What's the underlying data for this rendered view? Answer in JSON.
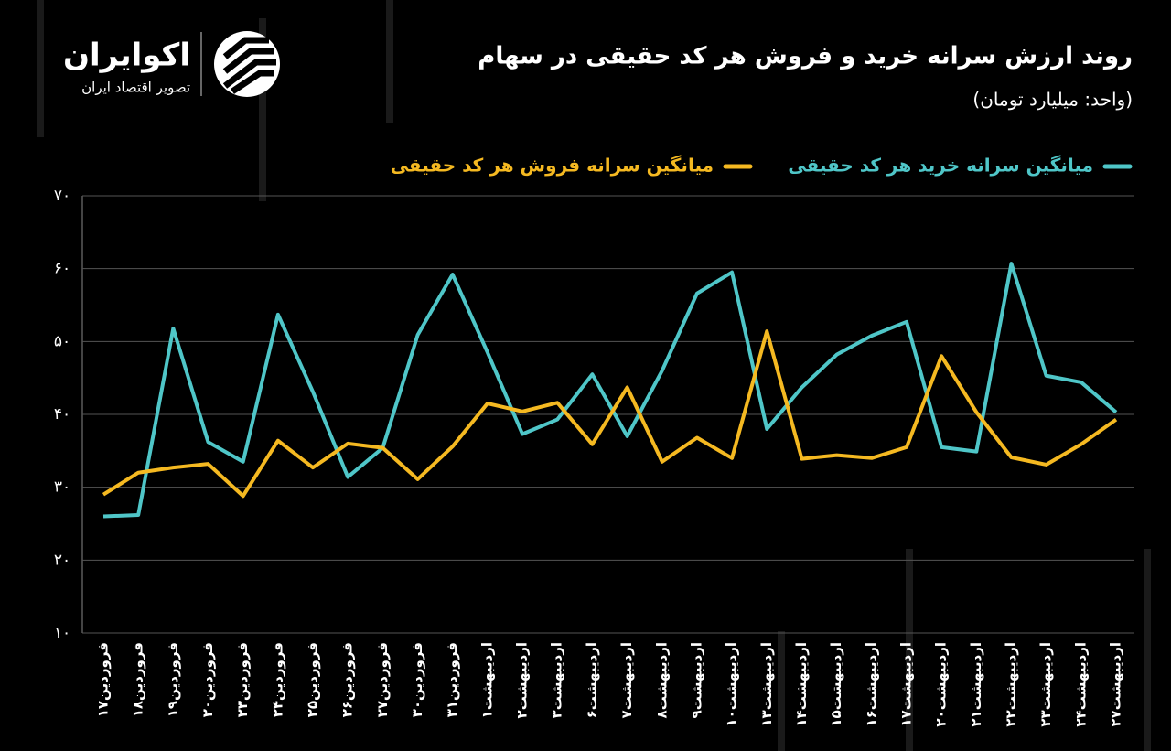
{
  "brand": {
    "name": "اکوایران",
    "tagline": "تصویر اقتصاد ایران"
  },
  "chart_data": {
    "type": "line",
    "title": "روند ارزش سرانه خرید و فروش هر کد حقیقی در سهام",
    "subtitle": "(واحد: میلیارد تومان)",
    "categories": [
      "فروردین۱۷",
      "فروردین۱۸",
      "فروردین۱۹",
      "فروردین۲۰",
      "فروردین۲۳",
      "فروردین۲۴",
      "فروردین۲۵",
      "فروردین۲۶",
      "فروردین۲۷",
      "فروردین۳۰",
      "فروردین۳۱",
      "اردیبهشت۱",
      "اردیبهشت۲",
      "اردیبهشت۳",
      "اردیبهشت۶",
      "اردیبهشت۷",
      "اردیبهشت۸",
      "اردیبهشت۹",
      "اردیبهشت۱۰",
      "اردیبهشت۱۳",
      "اردیبهشت۱۴",
      "اردیبهشت۱۵",
      "اردیبهشت۱۶",
      "اردیبهشت۱۷",
      "اردیبهشت۲۰",
      "اردیبهشت۲۱",
      "اردیبهشت۲۲",
      "اردیبهشت۲۳",
      "اردیبهشت۲۴",
      "اردیبهشت۲۷"
    ],
    "series": [
      {
        "name": "میانگین سرانه خرید هر کد حقیقی",
        "color": "#4fc6c8",
        "values": [
          26.0,
          26.2,
          51.8,
          36.2,
          33.5,
          53.7,
          43.1,
          31.4,
          35.4,
          50.9,
          59.2,
          48.5,
          37.3,
          39.3,
          45.5,
          37.0,
          46.0,
          56.6,
          59.5,
          38.0,
          43.7,
          48.2,
          50.8,
          52.7,
          35.5,
          34.9,
          60.7,
          45.3,
          44.4,
          40.3
        ]
      },
      {
        "name": "میانگین سرانه فروش هر کد حقیقی",
        "color": "#f5b921",
        "values": [
          29.0,
          32.0,
          32.7,
          33.2,
          28.8,
          36.4,
          32.7,
          36.0,
          35.4,
          31.1,
          35.6,
          41.5,
          40.4,
          41.6,
          35.9,
          43.7,
          33.5,
          36.8,
          34.0,
          51.4,
          33.9,
          34.4,
          34.0,
          35.5,
          48.0,
          40.3,
          34.1,
          33.1,
          35.9,
          39.3
        ]
      }
    ],
    "ylim": [
      10,
      70
    ],
    "yticks": [
      {
        "value": 10,
        "label": "۱۰"
      },
      {
        "value": 20,
        "label": "۲۰"
      },
      {
        "value": 30,
        "label": "۳۰"
      },
      {
        "value": 40,
        "label": "۴۰"
      },
      {
        "value": 50,
        "label": "۵۰"
      },
      {
        "value": 60,
        "label": "۶۰"
      },
      {
        "value": 70,
        "label": "۷۰"
      }
    ],
    "grid": true
  }
}
